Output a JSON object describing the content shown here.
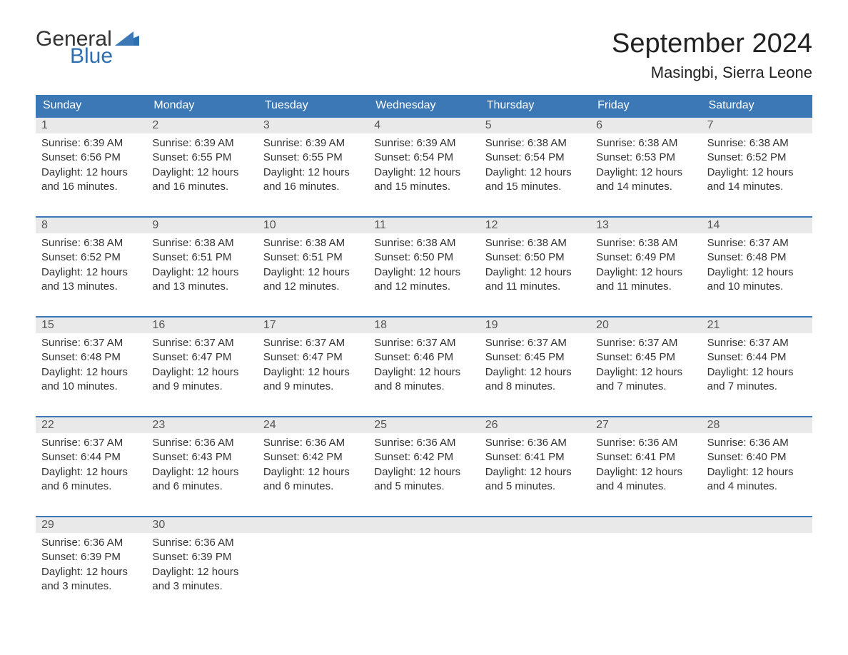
{
  "logo": {
    "text_general": "General",
    "text_blue": "Blue",
    "general_color": "#333333",
    "blue_color": "#2f6fb0"
  },
  "title": "September 2024",
  "location": "Masingbi, Sierra Leone",
  "colors": {
    "header_bg": "#3b78b5",
    "header_text": "#ffffff",
    "num_row_bg": "#e9e9e9",
    "num_text": "#555555",
    "body_text": "#333333",
    "week_border": "#3b78b5",
    "page_bg": "#ffffff"
  },
  "fonts": {
    "month_title_pt": 38,
    "location_pt": 22,
    "day_header_pt": 16,
    "day_num_pt": 16,
    "cell_pt": 15,
    "logo_pt": 30
  },
  "day_labels": [
    "Sunday",
    "Monday",
    "Tuesday",
    "Wednesday",
    "Thursday",
    "Friday",
    "Saturday"
  ],
  "weeks": [
    [
      {
        "num": "1",
        "sunrise": "Sunrise: 6:39 AM",
        "sunset": "Sunset: 6:56 PM",
        "d1": "Daylight: 12 hours",
        "d2": "and 16 minutes."
      },
      {
        "num": "2",
        "sunrise": "Sunrise: 6:39 AM",
        "sunset": "Sunset: 6:55 PM",
        "d1": "Daylight: 12 hours",
        "d2": "and 16 minutes."
      },
      {
        "num": "3",
        "sunrise": "Sunrise: 6:39 AM",
        "sunset": "Sunset: 6:55 PM",
        "d1": "Daylight: 12 hours",
        "d2": "and 16 minutes."
      },
      {
        "num": "4",
        "sunrise": "Sunrise: 6:39 AM",
        "sunset": "Sunset: 6:54 PM",
        "d1": "Daylight: 12 hours",
        "d2": "and 15 minutes."
      },
      {
        "num": "5",
        "sunrise": "Sunrise: 6:38 AM",
        "sunset": "Sunset: 6:54 PM",
        "d1": "Daylight: 12 hours",
        "d2": "and 15 minutes."
      },
      {
        "num": "6",
        "sunrise": "Sunrise: 6:38 AM",
        "sunset": "Sunset: 6:53 PM",
        "d1": "Daylight: 12 hours",
        "d2": "and 14 minutes."
      },
      {
        "num": "7",
        "sunrise": "Sunrise: 6:38 AM",
        "sunset": "Sunset: 6:52 PM",
        "d1": "Daylight: 12 hours",
        "d2": "and 14 minutes."
      }
    ],
    [
      {
        "num": "8",
        "sunrise": "Sunrise: 6:38 AM",
        "sunset": "Sunset: 6:52 PM",
        "d1": "Daylight: 12 hours",
        "d2": "and 13 minutes."
      },
      {
        "num": "9",
        "sunrise": "Sunrise: 6:38 AM",
        "sunset": "Sunset: 6:51 PM",
        "d1": "Daylight: 12 hours",
        "d2": "and 13 minutes."
      },
      {
        "num": "10",
        "sunrise": "Sunrise: 6:38 AM",
        "sunset": "Sunset: 6:51 PM",
        "d1": "Daylight: 12 hours",
        "d2": "and 12 minutes."
      },
      {
        "num": "11",
        "sunrise": "Sunrise: 6:38 AM",
        "sunset": "Sunset: 6:50 PM",
        "d1": "Daylight: 12 hours",
        "d2": "and 12 minutes."
      },
      {
        "num": "12",
        "sunrise": "Sunrise: 6:38 AM",
        "sunset": "Sunset: 6:50 PM",
        "d1": "Daylight: 12 hours",
        "d2": "and 11 minutes."
      },
      {
        "num": "13",
        "sunrise": "Sunrise: 6:38 AM",
        "sunset": "Sunset: 6:49 PM",
        "d1": "Daylight: 12 hours",
        "d2": "and 11 minutes."
      },
      {
        "num": "14",
        "sunrise": "Sunrise: 6:37 AM",
        "sunset": "Sunset: 6:48 PM",
        "d1": "Daylight: 12 hours",
        "d2": "and 10 minutes."
      }
    ],
    [
      {
        "num": "15",
        "sunrise": "Sunrise: 6:37 AM",
        "sunset": "Sunset: 6:48 PM",
        "d1": "Daylight: 12 hours",
        "d2": "and 10 minutes."
      },
      {
        "num": "16",
        "sunrise": "Sunrise: 6:37 AM",
        "sunset": "Sunset: 6:47 PM",
        "d1": "Daylight: 12 hours",
        "d2": "and 9 minutes."
      },
      {
        "num": "17",
        "sunrise": "Sunrise: 6:37 AM",
        "sunset": "Sunset: 6:47 PM",
        "d1": "Daylight: 12 hours",
        "d2": "and 9 minutes."
      },
      {
        "num": "18",
        "sunrise": "Sunrise: 6:37 AM",
        "sunset": "Sunset: 6:46 PM",
        "d1": "Daylight: 12 hours",
        "d2": "and 8 minutes."
      },
      {
        "num": "19",
        "sunrise": "Sunrise: 6:37 AM",
        "sunset": "Sunset: 6:45 PM",
        "d1": "Daylight: 12 hours",
        "d2": "and 8 minutes."
      },
      {
        "num": "20",
        "sunrise": "Sunrise: 6:37 AM",
        "sunset": "Sunset: 6:45 PM",
        "d1": "Daylight: 12 hours",
        "d2": "and 7 minutes."
      },
      {
        "num": "21",
        "sunrise": "Sunrise: 6:37 AM",
        "sunset": "Sunset: 6:44 PM",
        "d1": "Daylight: 12 hours",
        "d2": "and 7 minutes."
      }
    ],
    [
      {
        "num": "22",
        "sunrise": "Sunrise: 6:37 AM",
        "sunset": "Sunset: 6:44 PM",
        "d1": "Daylight: 12 hours",
        "d2": "and 6 minutes."
      },
      {
        "num": "23",
        "sunrise": "Sunrise: 6:36 AM",
        "sunset": "Sunset: 6:43 PM",
        "d1": "Daylight: 12 hours",
        "d2": "and 6 minutes."
      },
      {
        "num": "24",
        "sunrise": "Sunrise: 6:36 AM",
        "sunset": "Sunset: 6:42 PM",
        "d1": "Daylight: 12 hours",
        "d2": "and 6 minutes."
      },
      {
        "num": "25",
        "sunrise": "Sunrise: 6:36 AM",
        "sunset": "Sunset: 6:42 PM",
        "d1": "Daylight: 12 hours",
        "d2": "and 5 minutes."
      },
      {
        "num": "26",
        "sunrise": "Sunrise: 6:36 AM",
        "sunset": "Sunset: 6:41 PM",
        "d1": "Daylight: 12 hours",
        "d2": "and 5 minutes."
      },
      {
        "num": "27",
        "sunrise": "Sunrise: 6:36 AM",
        "sunset": "Sunset: 6:41 PM",
        "d1": "Daylight: 12 hours",
        "d2": "and 4 minutes."
      },
      {
        "num": "28",
        "sunrise": "Sunrise: 6:36 AM",
        "sunset": "Sunset: 6:40 PM",
        "d1": "Daylight: 12 hours",
        "d2": "and 4 minutes."
      }
    ],
    [
      {
        "num": "29",
        "sunrise": "Sunrise: 6:36 AM",
        "sunset": "Sunset: 6:39 PM",
        "d1": "Daylight: 12 hours",
        "d2": "and 3 minutes."
      },
      {
        "num": "30",
        "sunrise": "Sunrise: 6:36 AM",
        "sunset": "Sunset: 6:39 PM",
        "d1": "Daylight: 12 hours",
        "d2": "and 3 minutes."
      },
      {
        "num": "",
        "sunrise": "",
        "sunset": "",
        "d1": "",
        "d2": ""
      },
      {
        "num": "",
        "sunrise": "",
        "sunset": "",
        "d1": "",
        "d2": ""
      },
      {
        "num": "",
        "sunrise": "",
        "sunset": "",
        "d1": "",
        "d2": ""
      },
      {
        "num": "",
        "sunrise": "",
        "sunset": "",
        "d1": "",
        "d2": ""
      },
      {
        "num": "",
        "sunrise": "",
        "sunset": "",
        "d1": "",
        "d2": ""
      }
    ]
  ]
}
